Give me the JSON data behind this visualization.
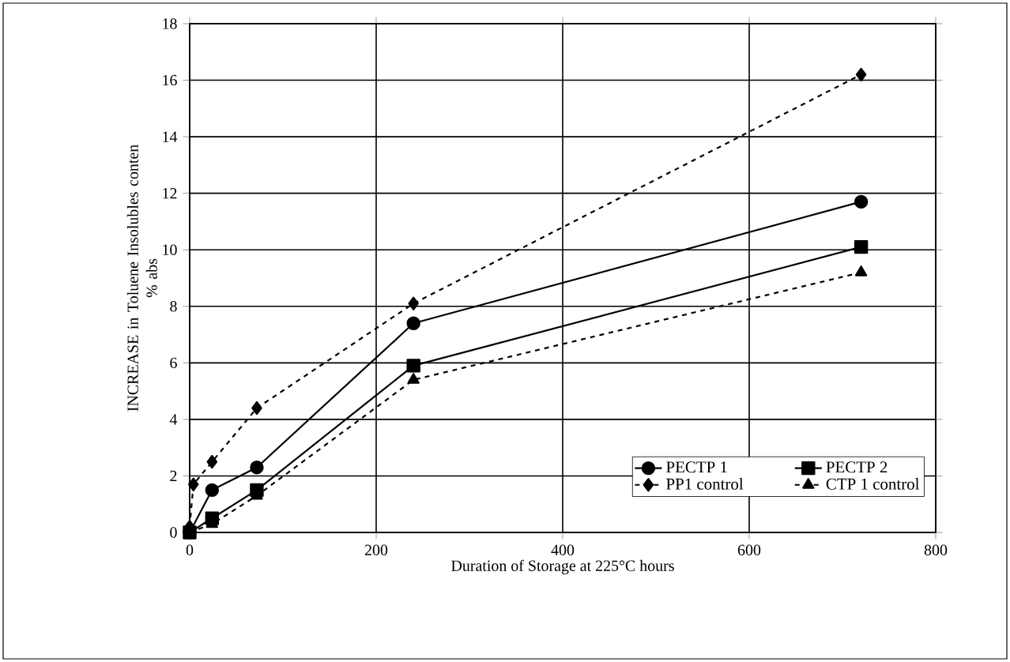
{
  "chart_data": {
    "type": "line",
    "xlabel": "Duration of Storage at 225°C   hours",
    "ylabel": "INCREASE in Toluene Insolubles conten\n% abs",
    "series": [
      {
        "name": "PECTP 1",
        "color": "#000000",
        "marker": "circle",
        "line_style": "solid",
        "x": [
          0,
          24,
          72,
          240,
          720
        ],
        "values": [
          0,
          1.5,
          2.3,
          7.4,
          11.7
        ]
      },
      {
        "name": "PECTP 2",
        "color": "#000000",
        "marker": "square",
        "line_style": "solid",
        "x": [
          0,
          24,
          72,
          240,
          720
        ],
        "values": [
          0,
          0.5,
          1.5,
          5.9,
          10.1
        ]
      },
      {
        "name": "PP1 control",
        "color": "#000000",
        "marker": "diamond",
        "line_style": "dotted",
        "x": [
          0,
          4,
          24,
          72,
          240,
          720
        ],
        "values": [
          0.2,
          1.7,
          2.5,
          4.4,
          8.1,
          16.2
        ]
      },
      {
        "name": "CTP 1 control",
        "color": "#000000",
        "marker": "triangle",
        "line_style": "dotted",
        "x": [
          0,
          24,
          72,
          240,
          720
        ],
        "values": [
          0,
          0.3,
          1.3,
          5.4,
          9.2
        ]
      }
    ],
    "xlim": [
      0,
      800
    ],
    "xticks": [
      0,
      200,
      400,
      600,
      800
    ],
    "ylim": [
      0,
      18
    ],
    "yticks": [
      0,
      2,
      4,
      6,
      8,
      10,
      12,
      14,
      16,
      18
    ],
    "grid": true,
    "legend": "bottom right"
  }
}
